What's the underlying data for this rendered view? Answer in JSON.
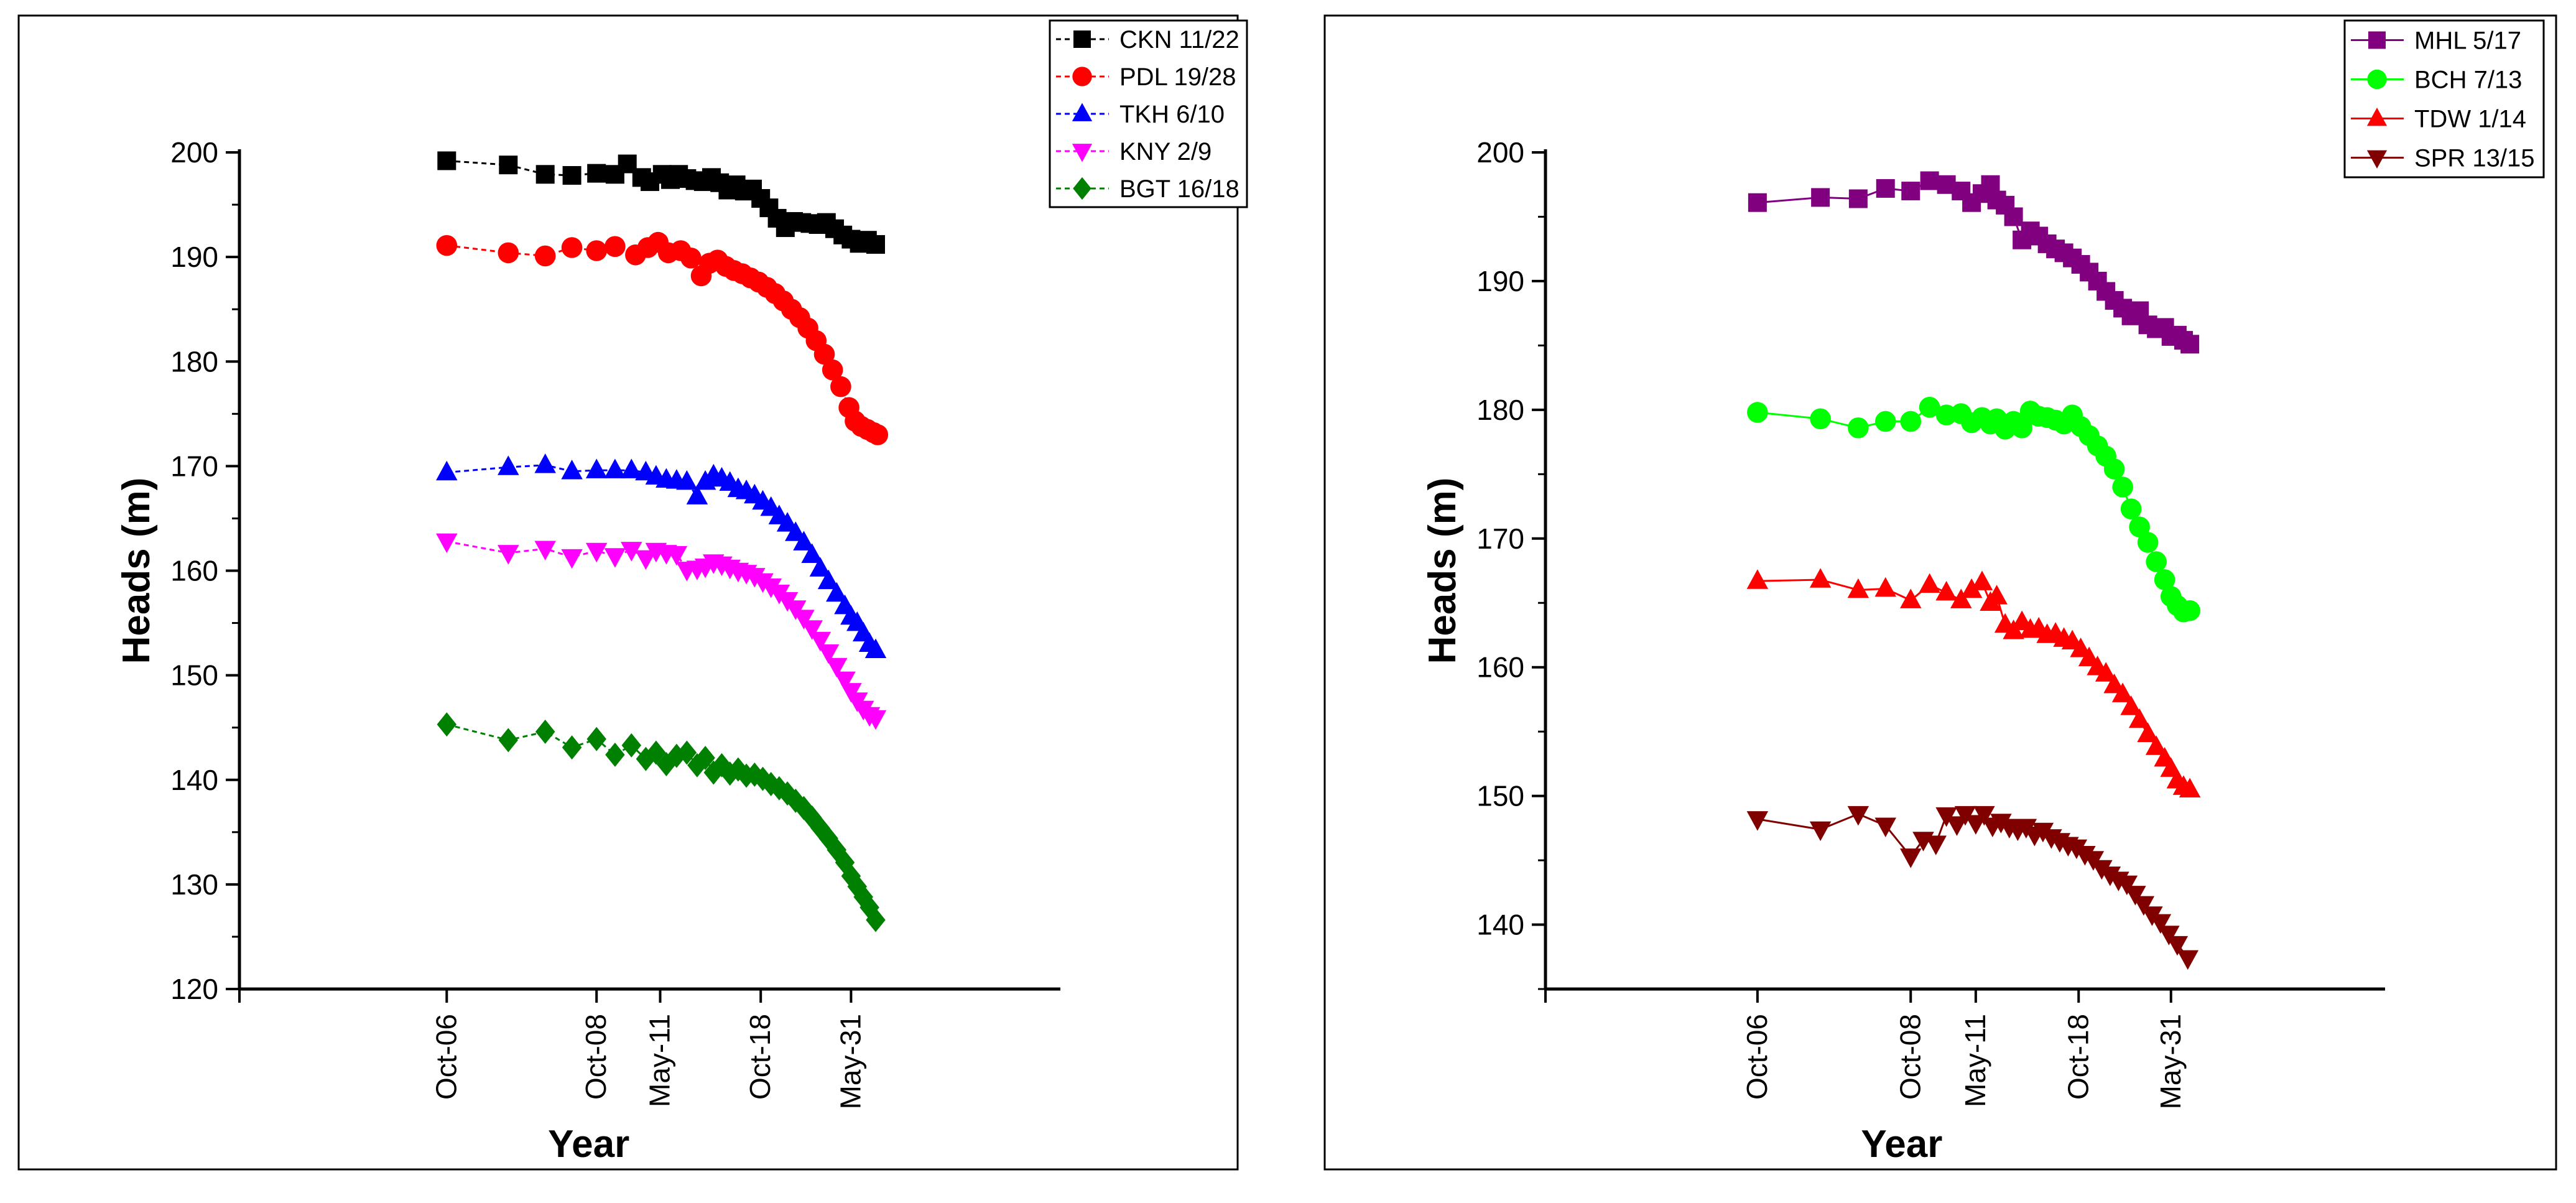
{
  "chart_data": [
    {
      "type": "scatter",
      "title": "",
      "xlabel": "Year",
      "ylabel": "Heads (m)",
      "xlim": [
        0,
        40
      ],
      "ylim": [
        120,
        200
      ],
      "yticks": [
        120,
        130,
        140,
        150,
        160,
        170,
        180,
        190,
        200
      ],
      "xticks": [
        {
          "x": 10.1,
          "label": "Oct-06"
        },
        {
          "x": 17.4,
          "label": "Oct-08"
        },
        {
          "x": 20.5,
          "label": "May-11"
        },
        {
          "x": 25.4,
          "label": "Oct-18"
        },
        {
          "x": 29.8,
          "label": "May-31"
        }
      ],
      "legend_position": "top-right",
      "grid": false,
      "series": [
        {
          "name": "CKN 11/22",
          "color": "#000000",
          "marker": "square",
          "line": "dashed",
          "x": [
            10.1,
            13.1,
            14.9,
            16.2,
            17.4,
            18.3,
            18.9,
            19.6,
            20.0,
            20.6,
            21.0,
            21.4,
            21.8,
            22.2,
            22.6,
            23.0,
            23.4,
            23.8,
            24.2,
            24.6,
            25.0,
            25.4,
            25.8,
            26.2,
            26.6,
            27.0,
            27.4,
            27.8,
            28.2,
            28.6,
            29.0,
            29.4,
            29.8,
            30.2,
            30.6,
            31.0
          ],
          "values": [
            199.2,
            198.8,
            197.9,
            197.8,
            198.0,
            197.9,
            198.9,
            197.6,
            197.2,
            197.9,
            197.4,
            197.9,
            197.5,
            197.3,
            197.2,
            197.6,
            197.1,
            196.4,
            196.9,
            196.3,
            196.5,
            195.6,
            194.7,
            193.7,
            192.8,
            193.4,
            193.3,
            193.2,
            193.1,
            193.3,
            192.7,
            192.1,
            191.7,
            191.3,
            191.6,
            191.2
          ]
        },
        {
          "name": "PDL 19/28",
          "color": "#ff0000",
          "marker": "circle",
          "line": "dashed",
          "x": [
            10.1,
            13.1,
            14.9,
            16.2,
            17.4,
            18.3,
            19.3,
            19.9,
            20.4,
            20.9,
            21.5,
            22.0,
            22.5,
            22.9,
            23.3,
            23.7,
            24.1,
            24.5,
            24.9,
            25.3,
            25.7,
            26.1,
            26.5,
            26.9,
            27.3,
            27.7,
            28.1,
            28.5,
            28.9,
            29.3,
            29.7,
            30.0,
            30.3,
            30.6,
            30.9,
            31.1
          ],
          "values": [
            191.1,
            190.4,
            190.1,
            190.9,
            190.6,
            191.0,
            190.2,
            190.9,
            191.4,
            190.4,
            190.6,
            189.9,
            188.2,
            189.4,
            189.7,
            189.1,
            188.7,
            188.4,
            188.0,
            187.6,
            187.1,
            186.5,
            185.8,
            185.0,
            184.2,
            183.2,
            182.0,
            180.7,
            179.2,
            177.6,
            175.6,
            174.3,
            173.8,
            173.5,
            173.2,
            173.0
          ]
        },
        {
          "name": "TKH 6/10",
          "color": "#0000ff",
          "marker": "triangle-up",
          "line": "dashed",
          "x": [
            10.1,
            13.1,
            14.9,
            16.2,
            17.4,
            18.3,
            19.1,
            19.8,
            20.3,
            20.8,
            21.3,
            21.8,
            22.3,
            22.7,
            23.1,
            23.5,
            23.9,
            24.3,
            24.7,
            25.1,
            25.5,
            25.9,
            26.3,
            26.7,
            27.1,
            27.5,
            27.9,
            28.3,
            28.7,
            29.1,
            29.5,
            29.8,
            30.1,
            30.4,
            30.7,
            31.0
          ],
          "values": [
            169.4,
            169.9,
            170.1,
            169.5,
            169.6,
            169.6,
            169.6,
            169.4,
            169.0,
            168.7,
            168.6,
            168.5,
            167.1,
            168.5,
            169.1,
            168.8,
            168.4,
            167.8,
            167.6,
            167.2,
            166.6,
            166.0,
            165.2,
            164.5,
            163.6,
            162.7,
            161.5,
            160.2,
            159.0,
            157.8,
            156.6,
            155.6,
            155.0,
            154.0,
            153.0,
            152.4
          ]
        },
        {
          "name": "KNY 2/9",
          "color": "#ff00ff",
          "marker": "triangle-down",
          "line": "dashed",
          "x": [
            10.1,
            13.1,
            14.9,
            16.2,
            17.4,
            18.3,
            19.1,
            19.8,
            20.3,
            20.8,
            21.3,
            21.8,
            22.3,
            22.7,
            23.1,
            23.5,
            23.9,
            24.3,
            24.7,
            25.1,
            25.5,
            25.9,
            26.3,
            26.7,
            27.1,
            27.5,
            27.9,
            28.3,
            28.7,
            29.1,
            29.5,
            29.8,
            30.1,
            30.4,
            30.7,
            31.0
          ],
          "values": [
            162.8,
            161.7,
            162.1,
            161.3,
            161.9,
            161.4,
            162.0,
            161.2,
            161.9,
            161.7,
            161.6,
            160.1,
            160.2,
            160.4,
            160.8,
            160.6,
            160.3,
            160.0,
            159.8,
            159.5,
            159.0,
            158.5,
            157.9,
            157.2,
            156.4,
            155.5,
            154.5,
            153.4,
            152.2,
            150.9,
            149.6,
            148.5,
            147.6,
            146.8,
            146.2,
            145.9
          ]
        },
        {
          "name": "BGT 16/18",
          "color": "#008000",
          "marker": "diamond",
          "line": "dashed",
          "x": [
            10.1,
            13.1,
            14.9,
            16.2,
            17.4,
            18.3,
            19.1,
            19.8,
            20.3,
            20.8,
            21.3,
            21.8,
            22.3,
            22.7,
            23.1,
            23.5,
            23.9,
            24.3,
            24.7,
            25.1,
            25.5,
            25.9,
            26.3,
            26.7,
            27.1,
            27.5,
            27.9,
            28.3,
            28.7,
            29.1,
            29.5,
            29.8,
            30.1,
            30.4,
            30.7,
            31.0
          ],
          "values": [
            145.3,
            143.8,
            144.6,
            143.1,
            143.9,
            142.4,
            143.3,
            142.0,
            142.6,
            141.5,
            142.3,
            142.6,
            141.4,
            142.1,
            140.7,
            141.4,
            140.6,
            141.0,
            140.4,
            140.5,
            140.1,
            139.6,
            139.2,
            138.7,
            138.0,
            137.3,
            136.4,
            135.4,
            134.4,
            133.3,
            132.1,
            130.8,
            129.8,
            128.8,
            127.8,
            126.6
          ]
        }
      ]
    },
    {
      "type": "scatter",
      "title": "",
      "xlabel": "Year",
      "ylabel": "Heads (m)",
      "xlim": [
        0,
        40
      ],
      "ylim": [
        135,
        200
      ],
      "yticks": [
        140,
        150,
        160,
        170,
        180,
        190,
        200
      ],
      "xticks": [
        {
          "x": 10.1,
          "label": "Oct-06"
        },
        {
          "x": 17.4,
          "label": "Oct-08"
        },
        {
          "x": 20.5,
          "label": "May-11"
        },
        {
          "x": 25.4,
          "label": "Oct-18"
        },
        {
          "x": 29.8,
          "label": "May-31"
        }
      ],
      "legend_position": "top-right",
      "grid": false,
      "series": [
        {
          "name": "MHL 5/17",
          "color": "#800080",
          "marker": "square",
          "line": "solid",
          "x": [
            10.1,
            13.1,
            14.9,
            16.2,
            17.4,
            18.3,
            19.1,
            19.8,
            20.3,
            20.8,
            21.2,
            21.5,
            21.9,
            22.3,
            22.7,
            23.1,
            23.5,
            23.9,
            24.3,
            24.7,
            25.1,
            25.5,
            25.9,
            26.3,
            26.7,
            27.1,
            27.5,
            27.9,
            28.3,
            28.7,
            29.1,
            29.5,
            29.8,
            30.1,
            30.4,
            30.7
          ],
          "values": [
            196.1,
            196.5,
            196.4,
            197.2,
            197.0,
            197.8,
            197.5,
            197.0,
            196.1,
            196.8,
            197.5,
            196.3,
            195.9,
            195.0,
            193.2,
            193.9,
            193.5,
            192.9,
            192.5,
            192.2,
            191.8,
            191.3,
            190.7,
            190.0,
            189.2,
            188.5,
            187.9,
            187.3,
            187.7,
            186.6,
            186.3,
            186.4,
            185.7,
            185.8,
            185.4,
            185.1
          ]
        },
        {
          "name": "BCH 7/13",
          "color": "#00ff00",
          "marker": "circle",
          "line": "solid",
          "x": [
            10.1,
            13.1,
            14.9,
            16.2,
            17.4,
            18.3,
            19.1,
            19.8,
            20.3,
            20.8,
            21.2,
            21.5,
            21.9,
            22.3,
            22.7,
            23.1,
            23.5,
            23.9,
            24.3,
            24.7,
            25.1,
            25.5,
            25.9,
            26.3,
            26.7,
            27.1,
            27.5,
            27.9,
            28.3,
            28.7,
            29.1,
            29.5,
            29.8,
            30.1,
            30.4,
            30.7
          ],
          "values": [
            179.8,
            179.3,
            178.6,
            179.1,
            179.1,
            180.2,
            179.6,
            179.7,
            179.0,
            179.4,
            178.9,
            179.3,
            178.5,
            179.1,
            178.6,
            179.9,
            179.5,
            179.4,
            179.2,
            178.9,
            179.6,
            178.7,
            178.0,
            177.2,
            176.4,
            175.4,
            174.0,
            172.3,
            170.9,
            169.7,
            168.2,
            166.8,
            165.5,
            164.8,
            164.3,
            164.4
          ]
        },
        {
          "name": "TDW 1/14",
          "color": "#ff0000",
          "marker": "triangle-up",
          "line": "solid",
          "x": [
            10.1,
            13.1,
            14.9,
            16.2,
            17.4,
            18.3,
            19.1,
            19.8,
            20.3,
            20.8,
            21.2,
            21.5,
            21.9,
            22.3,
            22.7,
            23.1,
            23.5,
            23.9,
            24.3,
            24.7,
            25.1,
            25.5,
            25.9,
            26.3,
            26.7,
            27.1,
            27.5,
            27.9,
            28.3,
            28.7,
            29.1,
            29.5,
            29.8,
            30.1,
            30.4,
            30.7
          ],
          "values": [
            166.7,
            166.8,
            166.0,
            166.1,
            165.2,
            166.4,
            165.8,
            165.2,
            166.0,
            166.6,
            165.0,
            165.5,
            163.3,
            162.8,
            163.5,
            162.9,
            163.0,
            162.5,
            162.6,
            162.2,
            162.0,
            161.4,
            160.7,
            160.0,
            159.5,
            158.6,
            157.9,
            156.9,
            155.9,
            154.8,
            153.8,
            152.9,
            152.1,
            151.2,
            150.7,
            150.5
          ]
        },
        {
          "name": "SPR 13/15",
          "color": "#800000",
          "marker": "triangle-down",
          "line": "solid",
          "x": [
            10.1,
            13.1,
            14.9,
            16.2,
            17.4,
            18.0,
            18.6,
            19.1,
            19.6,
            20.0,
            20.5,
            20.9,
            21.3,
            21.7,
            22.1,
            22.5,
            22.9,
            23.3,
            23.7,
            24.1,
            24.5,
            24.9,
            25.3,
            25.7,
            26.1,
            26.5,
            26.9,
            27.3,
            27.7,
            28.1,
            28.5,
            28.9,
            29.3,
            29.7,
            30.1,
            30.6
          ],
          "values": [
            148.2,
            147.4,
            148.6,
            147.7,
            145.3,
            146.6,
            146.3,
            148.5,
            147.8,
            148.6,
            147.9,
            148.6,
            147.7,
            148.0,
            147.6,
            147.4,
            147.6,
            147.0,
            147.3,
            146.8,
            146.5,
            146.2,
            146.0,
            145.5,
            145.1,
            144.4,
            143.9,
            143.5,
            143.2,
            142.4,
            141.6,
            140.8,
            140.2,
            139.3,
            138.5,
            137.4
          ]
        }
      ]
    }
  ]
}
